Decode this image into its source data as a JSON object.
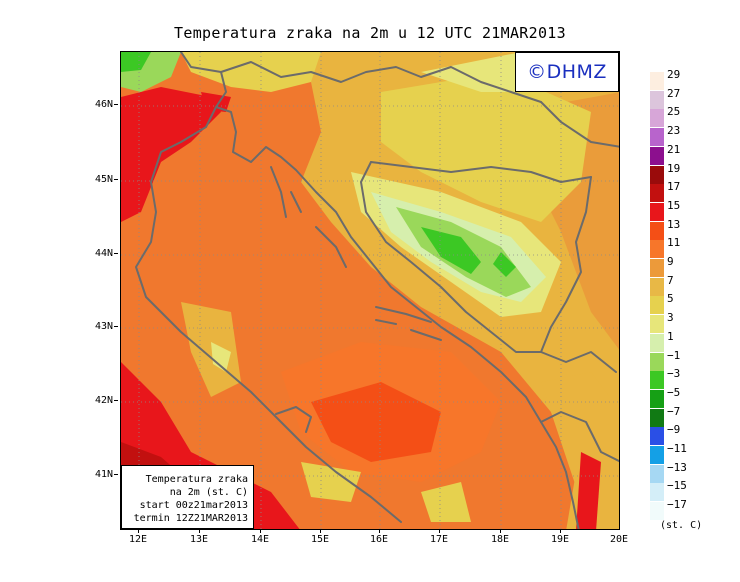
{
  "title": "Temperatura zraka na 2m u 12 UTC 21MAR2013",
  "logo": "©DHMZ",
  "info_box": {
    "line1": "Temperatura zraka",
    "line2": "na 2m (st. C)",
    "line3": "start 00z21mar2013",
    "line4": "termin 12Z21MAR2013"
  },
  "lat_labels": [
    "46N",
    "45N",
    "44N",
    "43N",
    "42N",
    "41N"
  ],
  "lon_labels": [
    "12E",
    "13E",
    "14E",
    "15E",
    "16E",
    "17E",
    "18E",
    "19E",
    "20E"
  ],
  "legend": {
    "unit": "(st. C)",
    "labels": [
      "29",
      "27",
      "25",
      "23",
      "21",
      "19",
      "17",
      "15",
      "13",
      "11",
      "9",
      "7",
      "5",
      "3",
      "1",
      "−1",
      "−3",
      "−5",
      "−7",
      "−9",
      "−11",
      "−13",
      "−15",
      "−17"
    ],
    "colors": [
      "#fdeee0",
      "#dcc5dc",
      "#d7a6d8",
      "#b864cc",
      "#8c0f8e",
      "#9a0b0b",
      "#c2100f",
      "#e8161b",
      "#f44f16",
      "#f7762a",
      "#ec9a3a",
      "#e8b846",
      "#e6d14e",
      "#e7e67a",
      "#d6efad",
      "#9ad85a",
      "#3cc824",
      "#16a015",
      "#117a14",
      "#2a4fe6",
      "#14a0e6",
      "#a6d8f3",
      "#d4eef8",
      "#f1fbfb"
    ]
  },
  "colors": {
    "coast": "#6b6b6b",
    "logo_text": "#1a2fbf",
    "sea": "#f0782e"
  }
}
